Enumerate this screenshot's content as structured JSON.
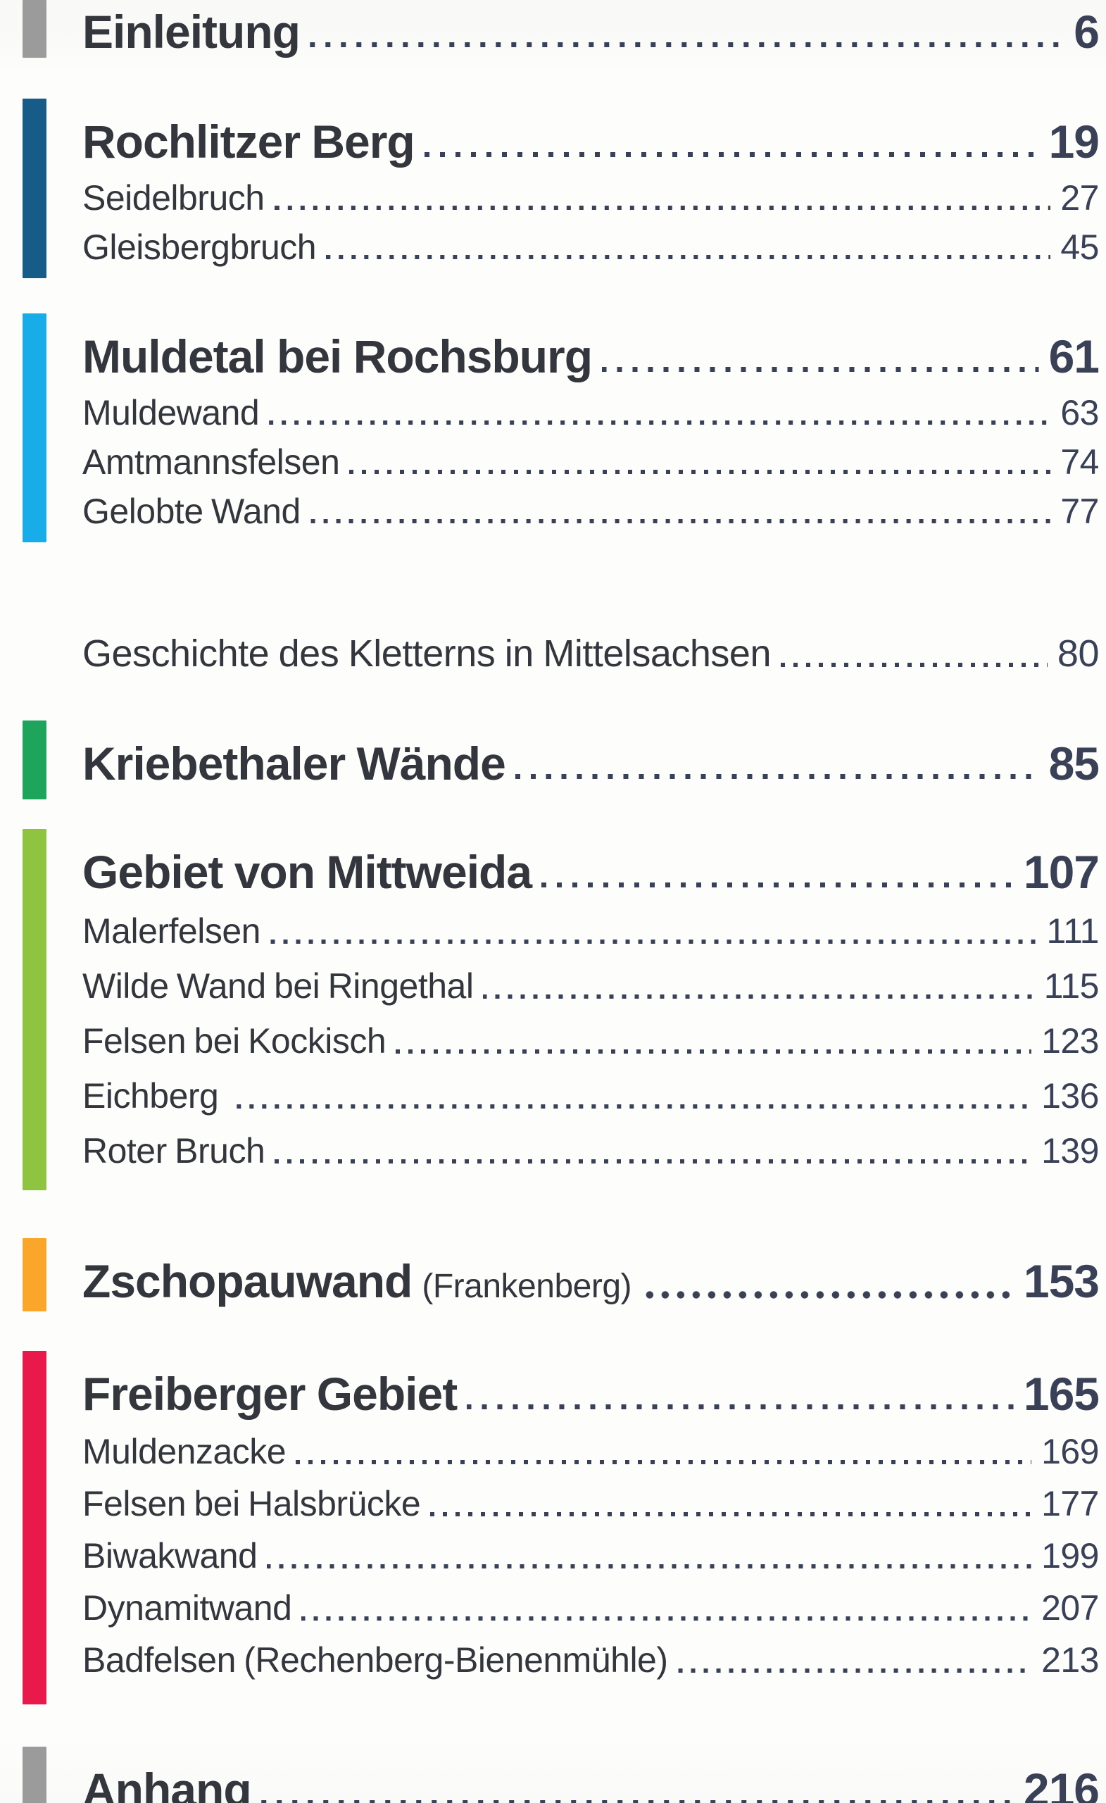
{
  "page": {
    "kind": "table-of-contents",
    "background": "#fdfdfc",
    "title_color": "#34363d",
    "number_color": "#3a4156",
    "dot_color": "#3a4156"
  },
  "sections": [
    {
      "id": "einleitung",
      "bar_color": "#9b9b9b",
      "entries": [
        {
          "level": "h1",
          "title": "Einleitung",
          "page": "6"
        }
      ]
    },
    {
      "id": "rochlitzer-berg",
      "bar_color": "#175b88",
      "entries": [
        {
          "level": "h1",
          "title": "Rochlitzer Berg",
          "page": "19"
        },
        {
          "level": "sub",
          "title": "Seidelbruch",
          "page": "27"
        },
        {
          "level": "sub",
          "title": "Gleisbergbruch",
          "page": "45"
        }
      ]
    },
    {
      "id": "muldetal-bei-rochsburg",
      "bar_color": "#18ade9",
      "entries": [
        {
          "level": "h1",
          "title": "Muldetal bei Rochsburg",
          "page": "61"
        },
        {
          "level": "sub",
          "title": "Muldewand",
          "page": "63"
        },
        {
          "level": "sub",
          "title": "Amtmannsfelsen",
          "page": "74"
        },
        {
          "level": "sub",
          "title": "Gelobte Wand",
          "page": "77"
        }
      ]
    },
    {
      "id": "geschichte",
      "bar_color": null,
      "entries": [
        {
          "level": "standalone",
          "title": "Geschichte des Kletterns in Mittelsachsen",
          "page": "80"
        }
      ]
    },
    {
      "id": "kriebethaler-waende",
      "bar_color": "#1ea55b",
      "entries": [
        {
          "level": "h1",
          "title": "Kriebethaler Wände",
          "page": "85"
        }
      ]
    },
    {
      "id": "gebiet-von-mittweida",
      "bar_color": "#8ec43f",
      "entries": [
        {
          "level": "h1",
          "title": "Gebiet von Mittweida",
          "page": "107"
        },
        {
          "level": "sub",
          "title": "Malerfelsen",
          "page": "111"
        },
        {
          "level": "sub",
          "title": "Wilde Wand bei Ringethal",
          "page": "115"
        },
        {
          "level": "sub",
          "title": "Felsen bei Kockisch",
          "page": "123"
        },
        {
          "level": "sub",
          "title": "Eichberg ",
          "page": "136"
        },
        {
          "level": "sub",
          "title": "Roter Bruch",
          "page": "139"
        }
      ]
    },
    {
      "id": "zschopauwand",
      "bar_color": "#f9a62b",
      "entries": [
        {
          "level": "h1",
          "title": "Zschopauwand",
          "title_suffix": "(Frankenberg)",
          "page": "153"
        }
      ]
    },
    {
      "id": "freiberger-gebiet",
      "bar_color": "#e9194b",
      "entries": [
        {
          "level": "h1",
          "title": "Freiberger Gebiet",
          "page": "165"
        },
        {
          "level": "sub",
          "title": "Muldenzacke",
          "page": "169"
        },
        {
          "level": "sub",
          "title": "Felsen bei Halsbrücke",
          "page": "177"
        },
        {
          "level": "sub",
          "title": "Biwakwand",
          "page": "199"
        },
        {
          "level": "sub",
          "title": "Dynamitwand",
          "page": "207"
        },
        {
          "level": "sub",
          "title": "Badfelsen (Rechenberg-Bienenmühle)",
          "page": "213"
        }
      ]
    },
    {
      "id": "anhang",
      "bar_color": "#9b9b9b",
      "entries": [
        {
          "level": "h1",
          "title": "Anhang",
          "page": "216"
        }
      ]
    }
  ]
}
